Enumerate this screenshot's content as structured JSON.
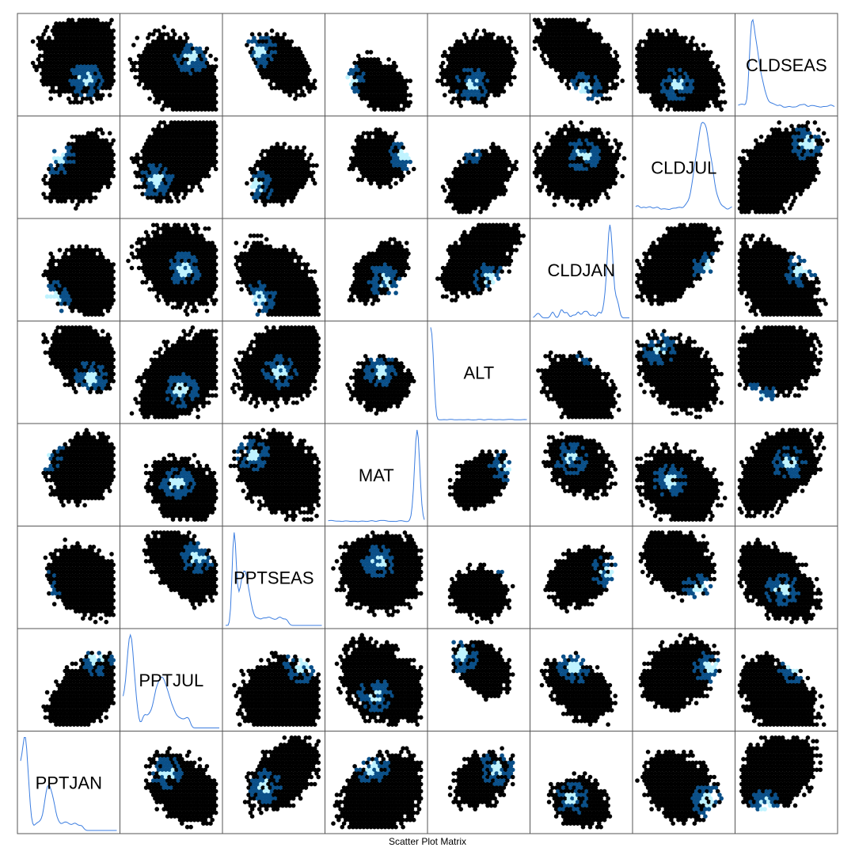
{
  "chart_data": {
    "type": "scatter",
    "subtype": "hexbin-scatter-plot-matrix",
    "caption": "Scatter Plot Matrix",
    "variables": [
      "PPTJAN",
      "PPTJUL",
      "PPTSEAS",
      "MAT",
      "ALT",
      "CLDJAN",
      "CLDJUL",
      "CLDSEAS"
    ],
    "diagonal": "kernel-density",
    "layout": "diagonal runs bottom-left (PPTJAN) to top-right (CLDSEAS)",
    "axis_ticks_shown": false,
    "grid": false,
    "legend": "none",
    "colors": {
      "hexbin_low": "#000000",
      "hexbin_mid": "#0a4f88",
      "hexbin_high": "#bff3ff",
      "density_line": "#3b7de0",
      "panel_border": "#555555"
    }
  }
}
